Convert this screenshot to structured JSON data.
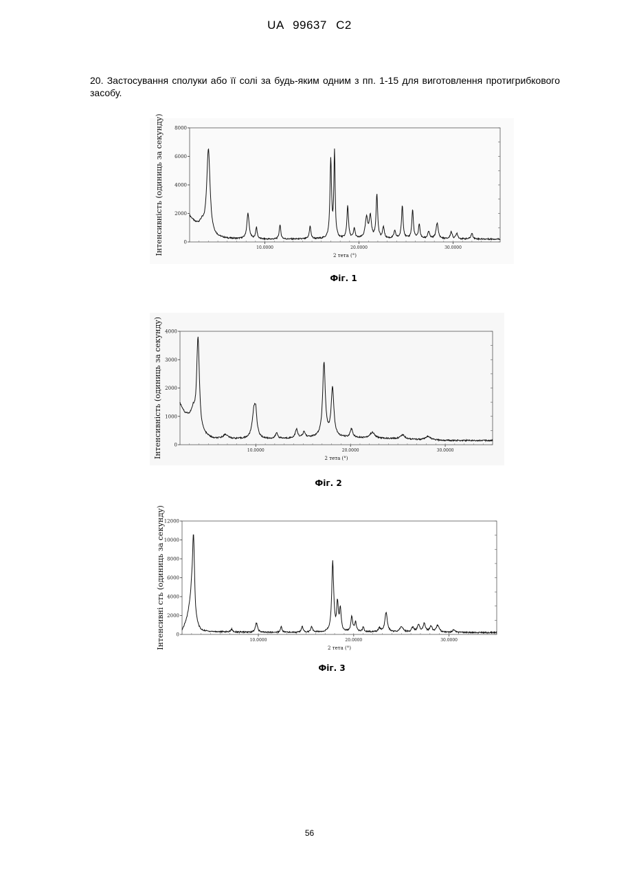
{
  "page": {
    "header": "UA 99637 C2",
    "claim_text": "20. Застосування сполуки або її солі за будь-яким одним з пп. 1-15 для виготовлення протигрибкового засобу.",
    "page_number": "56"
  },
  "chart_data": [
    {
      "type": "line",
      "title": "",
      "caption": "Фіг. 1",
      "xlabel": "2 тета (°)",
      "ylabel": "Інтенсивність (одиниць за секунду)",
      "xlim": [
        2,
        35
      ],
      "ylim": [
        0,
        8000
      ],
      "yticks": [
        0,
        2000,
        4000,
        6000,
        8000
      ],
      "xticks": [
        10,
        20,
        30
      ],
      "xtick_labels": [
        "10.0000",
        "20.0000",
        "30.0000"
      ],
      "grid": false,
      "baseline": [
        [
          2.0,
          1800
        ],
        [
          2.6,
          1300
        ],
        [
          3.0,
          1200
        ],
        [
          3.3,
          1250
        ],
        [
          3.6,
          800
        ],
        [
          4.3,
          300
        ],
        [
          6,
          220
        ],
        [
          10,
          180
        ],
        [
          15,
          200
        ],
        [
          20,
          220
        ],
        [
          25,
          230
        ],
        [
          30,
          200
        ],
        [
          35,
          200
        ]
      ],
      "peaks": [
        {
          "x": 4.0,
          "y": 6000,
          "w": 0.22
        },
        {
          "x": 8.2,
          "y": 1800,
          "w": 0.14
        },
        {
          "x": 9.1,
          "y": 800,
          "w": 0.1
        },
        {
          "x": 11.6,
          "y": 1000,
          "w": 0.1
        },
        {
          "x": 14.8,
          "y": 900,
          "w": 0.1
        },
        {
          "x": 17.0,
          "y": 5500,
          "w": 0.1
        },
        {
          "x": 17.4,
          "y": 6000,
          "w": 0.08
        },
        {
          "x": 18.8,
          "y": 2300,
          "w": 0.1
        },
        {
          "x": 19.5,
          "y": 700,
          "w": 0.1
        },
        {
          "x": 20.8,
          "y": 1400,
          "w": 0.16
        },
        {
          "x": 21.2,
          "y": 1500,
          "w": 0.14
        },
        {
          "x": 21.9,
          "y": 3100,
          "w": 0.1
        },
        {
          "x": 22.6,
          "y": 800,
          "w": 0.1
        },
        {
          "x": 23.8,
          "y": 500,
          "w": 0.12
        },
        {
          "x": 24.6,
          "y": 2300,
          "w": 0.1
        },
        {
          "x": 25.7,
          "y": 2000,
          "w": 0.1
        },
        {
          "x": 26.4,
          "y": 1000,
          "w": 0.1
        },
        {
          "x": 27.4,
          "y": 500,
          "w": 0.12
        },
        {
          "x": 28.3,
          "y": 1100,
          "w": 0.14
        },
        {
          "x": 29.8,
          "y": 500,
          "w": 0.12
        },
        {
          "x": 30.4,
          "y": 400,
          "w": 0.12
        },
        {
          "x": 32.0,
          "y": 400,
          "w": 0.12
        }
      ]
    },
    {
      "type": "line",
      "title": "",
      "caption": "Фіг. 2",
      "xlabel": "2 тета (°)",
      "ylabel": "Інтенсивність (одиниць за секунду)",
      "xlim": [
        2,
        35
      ],
      "ylim": [
        0,
        4000
      ],
      "yticks": [
        0,
        1000,
        2000,
        3000,
        4000
      ],
      "xticks": [
        10,
        20,
        30
      ],
      "xtick_labels": [
        "10.0000",
        "20.0000",
        "30.0000"
      ],
      "grid": false,
      "baseline": [
        [
          2.0,
          1450
        ],
        [
          2.5,
          1100
        ],
        [
          3.0,
          1000
        ],
        [
          3.4,
          1100
        ],
        [
          3.7,
          600
        ],
        [
          4.2,
          350
        ],
        [
          5.5,
          200
        ],
        [
          8,
          200
        ],
        [
          12,
          200
        ],
        [
          16,
          250
        ],
        [
          20,
          250
        ],
        [
          25,
          200
        ],
        [
          30,
          150
        ],
        [
          35,
          150
        ]
      ],
      "peaks": [
        {
          "x": 3.9,
          "y": 3300,
          "w": 0.18
        },
        {
          "x": 6.8,
          "y": 150,
          "w": 0.3
        },
        {
          "x": 9.8,
          "y": 900,
          "w": 0.22
        },
        {
          "x": 10.0,
          "y": 700,
          "w": 0.15
        },
        {
          "x": 12.2,
          "y": 200,
          "w": 0.15
        },
        {
          "x": 14.3,
          "y": 300,
          "w": 0.15
        },
        {
          "x": 15.1,
          "y": 200,
          "w": 0.15
        },
        {
          "x": 17.2,
          "y": 2600,
          "w": 0.17
        },
        {
          "x": 18.1,
          "y": 1700,
          "w": 0.17
        },
        {
          "x": 20.1,
          "y": 300,
          "w": 0.15
        },
        {
          "x": 22.3,
          "y": 200,
          "w": 0.3
        },
        {
          "x": 25.5,
          "y": 150,
          "w": 0.3
        },
        {
          "x": 28.2,
          "y": 120,
          "w": 0.3
        }
      ]
    },
    {
      "type": "line",
      "title": "",
      "caption": "Фіг. 3",
      "xlabel": "2 тета (°)",
      "ylabel": "Інтенсивні сть (одиниць за секунду)",
      "xlim": [
        2,
        35
      ],
      "ylim": [
        0,
        12000
      ],
      "yticks": [
        0,
        2000,
        4000,
        6000,
        8000,
        10000,
        12000
      ],
      "ytick_labels": [
        "0",
        "2000",
        "4000",
        "6000",
        "8000",
        "10000",
        "12000"
      ],
      "xticks": [
        10,
        20,
        30
      ],
      "xtick_labels": [
        "10.0000",
        "20.0000",
        "30.0000"
      ],
      "grid": false,
      "baseline": [
        [
          2.0,
          300
        ],
        [
          2.5,
          1500
        ],
        [
          3.0,
          3500
        ],
        [
          3.4,
          800
        ],
        [
          4.0,
          300
        ],
        [
          10,
          200
        ],
        [
          20,
          250
        ],
        [
          30,
          200
        ],
        [
          35,
          200
        ]
      ],
      "peaks": [
        {
          "x": 3.2,
          "y": 8500,
          "w": 0.14
        },
        {
          "x": 7.2,
          "y": 300,
          "w": 0.12
        },
        {
          "x": 9.8,
          "y": 1000,
          "w": 0.14
        },
        {
          "x": 12.4,
          "y": 600,
          "w": 0.1
        },
        {
          "x": 14.6,
          "y": 600,
          "w": 0.1
        },
        {
          "x": 15.6,
          "y": 600,
          "w": 0.1
        },
        {
          "x": 17.8,
          "y": 7400,
          "w": 0.12
        },
        {
          "x": 18.3,
          "y": 2900,
          "w": 0.1
        },
        {
          "x": 18.6,
          "y": 2400,
          "w": 0.1
        },
        {
          "x": 19.8,
          "y": 1600,
          "w": 0.12
        },
        {
          "x": 20.2,
          "y": 1000,
          "w": 0.1
        },
        {
          "x": 21.0,
          "y": 500,
          "w": 0.1
        },
        {
          "x": 22.7,
          "y": 400,
          "w": 0.15
        },
        {
          "x": 23.4,
          "y": 2100,
          "w": 0.15
        },
        {
          "x": 25.0,
          "y": 600,
          "w": 0.2
        },
        {
          "x": 26.2,
          "y": 500,
          "w": 0.15
        },
        {
          "x": 26.8,
          "y": 800,
          "w": 0.15
        },
        {
          "x": 27.4,
          "y": 900,
          "w": 0.15
        },
        {
          "x": 28.1,
          "y": 600,
          "w": 0.15
        },
        {
          "x": 28.8,
          "y": 700,
          "w": 0.2
        },
        {
          "x": 30.5,
          "y": 300,
          "w": 0.15
        }
      ]
    }
  ]
}
